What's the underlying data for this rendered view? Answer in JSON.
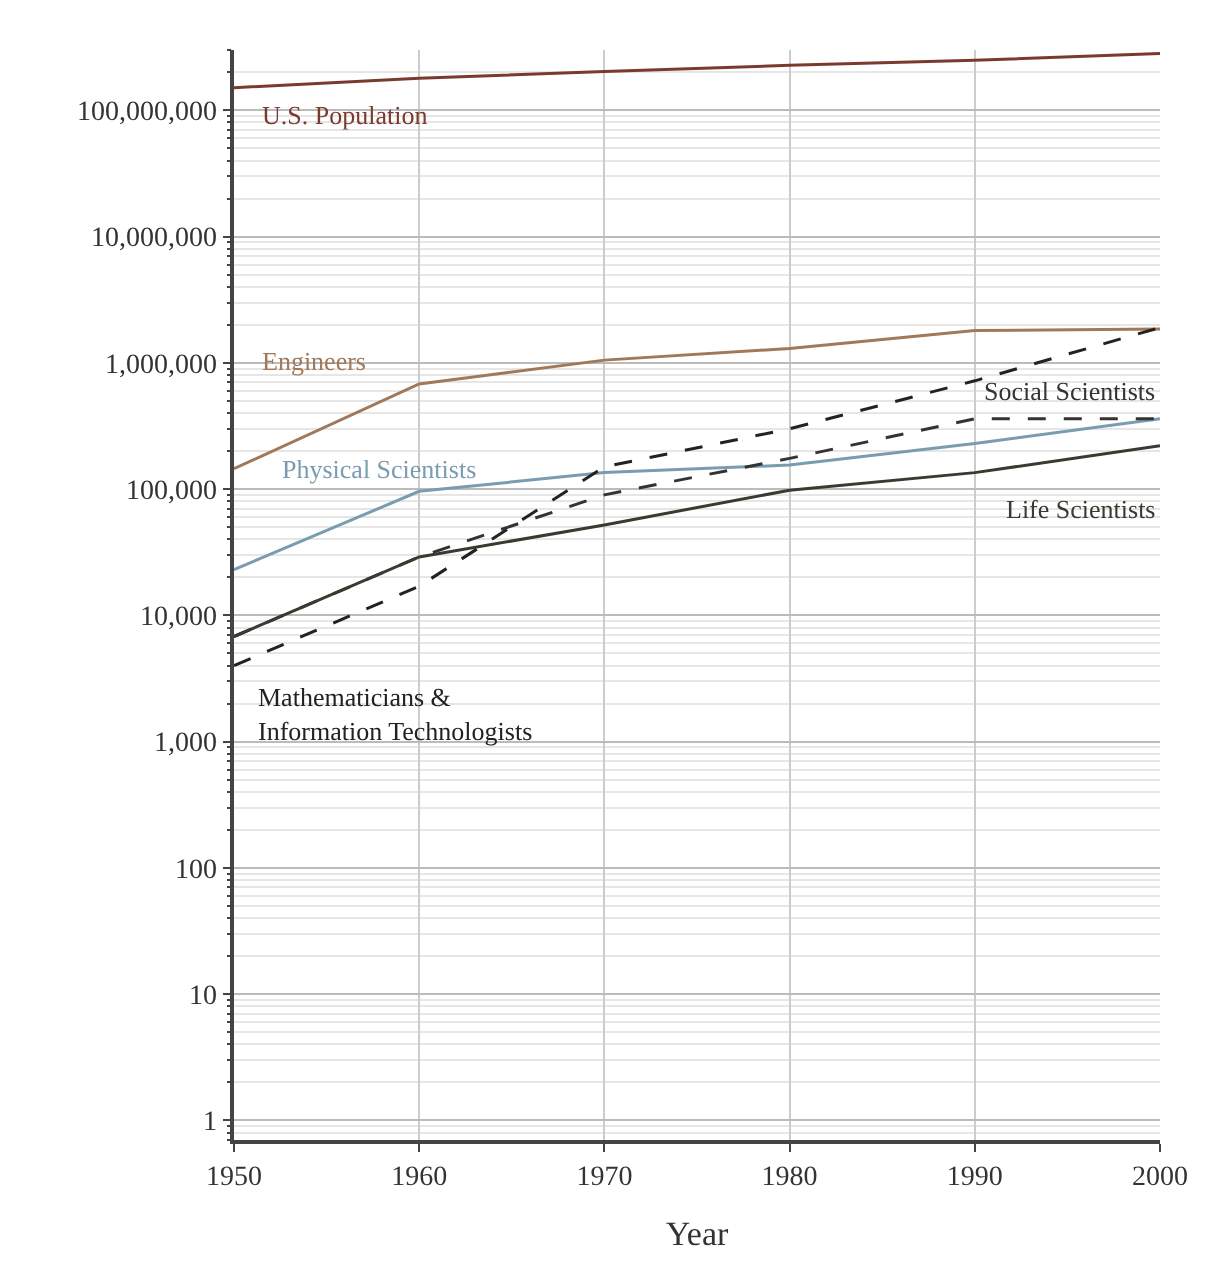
{
  "chart_data": {
    "type": "line",
    "xlabel": "Year",
    "log": "y",
    "grid": true,
    "legend": false,
    "line_style": "solid",
    "marker": "none",
    "x": [
      1950,
      1960,
      1970,
      1980,
      1990,
      2000
    ],
    "xlim": [
      1950,
      2000
    ],
    "xticks": [
      1950,
      1960,
      1970,
      1980,
      1990,
      2000
    ],
    "ylim": [
      0.7,
      300000000
    ],
    "yticks": [
      {
        "value": 1,
        "label": "1"
      },
      {
        "value": 10,
        "label": "10"
      },
      {
        "value": 100,
        "label": "100"
      },
      {
        "value": 1000,
        "label": "1,000"
      },
      {
        "value": 10000,
        "label": "10,000"
      },
      {
        "value": 100000,
        "label": "100,000"
      },
      {
        "value": 1000000,
        "label": "1,000,000"
      },
      {
        "value": 10000000,
        "label": "10,000,000"
      },
      {
        "value": 100000000,
        "label": "100,000,000"
      }
    ],
    "series": [
      {
        "name": "U.S. Population",
        "color": "#7b3a2e",
        "values": [
          151000000,
          179000000,
          203000000,
          227000000,
          249000000,
          281000000
        ]
      },
      {
        "name": "Engineers",
        "color": "#a0785a",
        "values": [
          145000,
          680000,
          1050000,
          1300000,
          1800000,
          1850000
        ]
      },
      {
        "name": "Physical Scientists",
        "color": "#7a9cb0",
        "values": [
          23000,
          96000,
          135000,
          155000,
          230000,
          360000
        ]
      },
      {
        "name": "Mathematicians &\nInformation Technologists",
        "color": "#222222",
        "line_style": "dashed",
        "values": [
          4000,
          17000,
          150000,
          300000,
          720000,
          1900000
        ]
      },
      {
        "name": "Social Scientists",
        "color": "#333333",
        "line_style": "dashed",
        "values": [
          6800,
          29000,
          90000,
          175000,
          360000,
          360000
        ]
      },
      {
        "name": "Life Scientists",
        "color": "#3a3a30",
        "values": [
          6800,
          29000,
          52000,
          98000,
          135000,
          220000
        ]
      }
    ]
  }
}
